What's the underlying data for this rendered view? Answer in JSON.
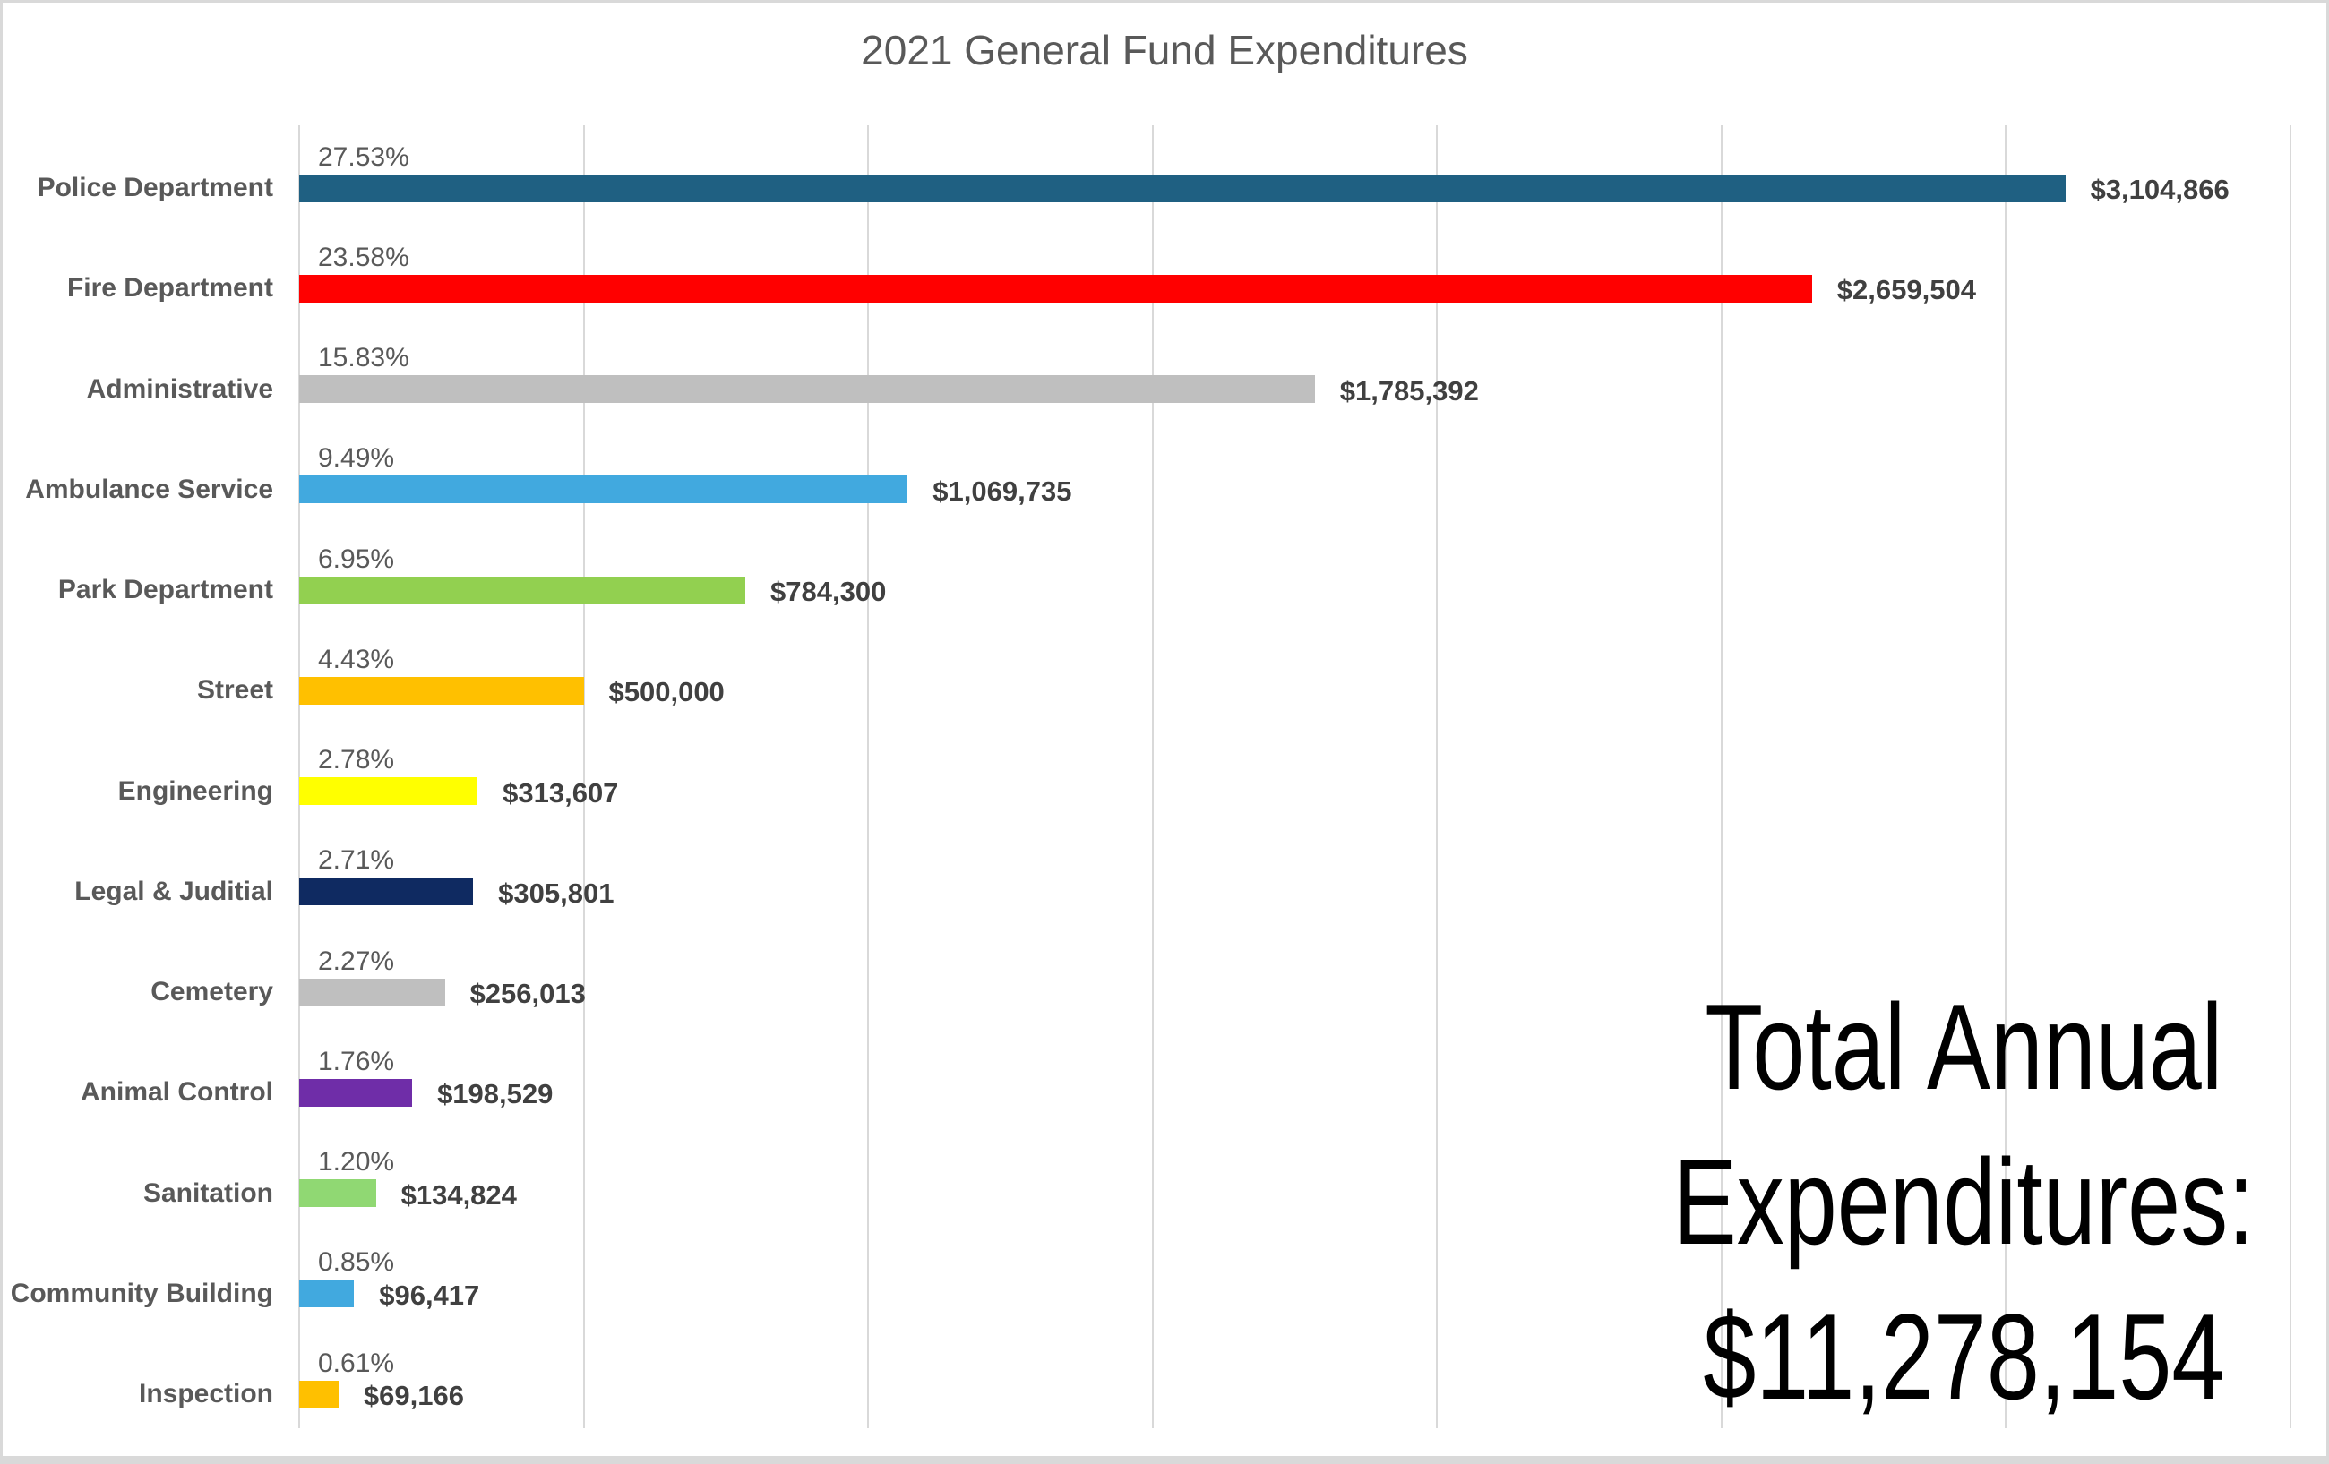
{
  "chart_data": {
    "type": "bar",
    "orientation": "horizontal",
    "title": "2021 General Fund Expenditures",
    "categories": [
      "Police Department",
      "Fire Department",
      "Administrative",
      "Ambulance Service",
      "Park Department",
      "Street",
      "Engineering",
      "Legal & Juditial",
      "Cemetery",
      "Animal Control",
      "Sanitation",
      "Community Building",
      "Inspection"
    ],
    "values": [
      3104866,
      2659504,
      1785392,
      1069735,
      784300,
      500000,
      313607,
      305801,
      256013,
      198529,
      134824,
      96417,
      69166
    ],
    "percent_labels": [
      "27.53%",
      "23.58%",
      "15.83%",
      "9.49%",
      "6.95%",
      "4.43%",
      "2.78%",
      "2.71%",
      "2.27%",
      "1.76%",
      "1.20%",
      "0.85%",
      "0.61%"
    ],
    "value_labels": [
      "$3,104,866",
      "$2,659,504",
      "$1,785,392",
      "$1,069,735",
      "$784,300",
      "$500,000",
      "$313,607",
      "$305,801",
      "$256,013",
      "$198,529",
      "$134,824",
      "$96,417",
      "$69,166"
    ],
    "bar_colors": [
      "#1F6082",
      "#FF0000",
      "#BFBFBF",
      "#41A9DF",
      "#92D050",
      "#FFC000",
      "#FFFF00",
      "#0F2A61",
      "#BFBFBF",
      "#6F2DA8",
      "#90D873",
      "#41A9DF",
      "#FFC000"
    ],
    "x_gridline_interval_dollars": 500000,
    "grid_on": true,
    "xlim": [
      0,
      3500000
    ],
    "annotation": {
      "lines": [
        "Total Annual",
        "Expenditures:",
        "$11,278,154"
      ]
    },
    "style_colors": {
      "title_text": "#595959",
      "category_text": "#595959",
      "percent_text": "#595959",
      "value_text": "#404040",
      "gridline": "#D9D9D9",
      "annotation_text": "#000000",
      "background": "#FFFFFF"
    }
  }
}
